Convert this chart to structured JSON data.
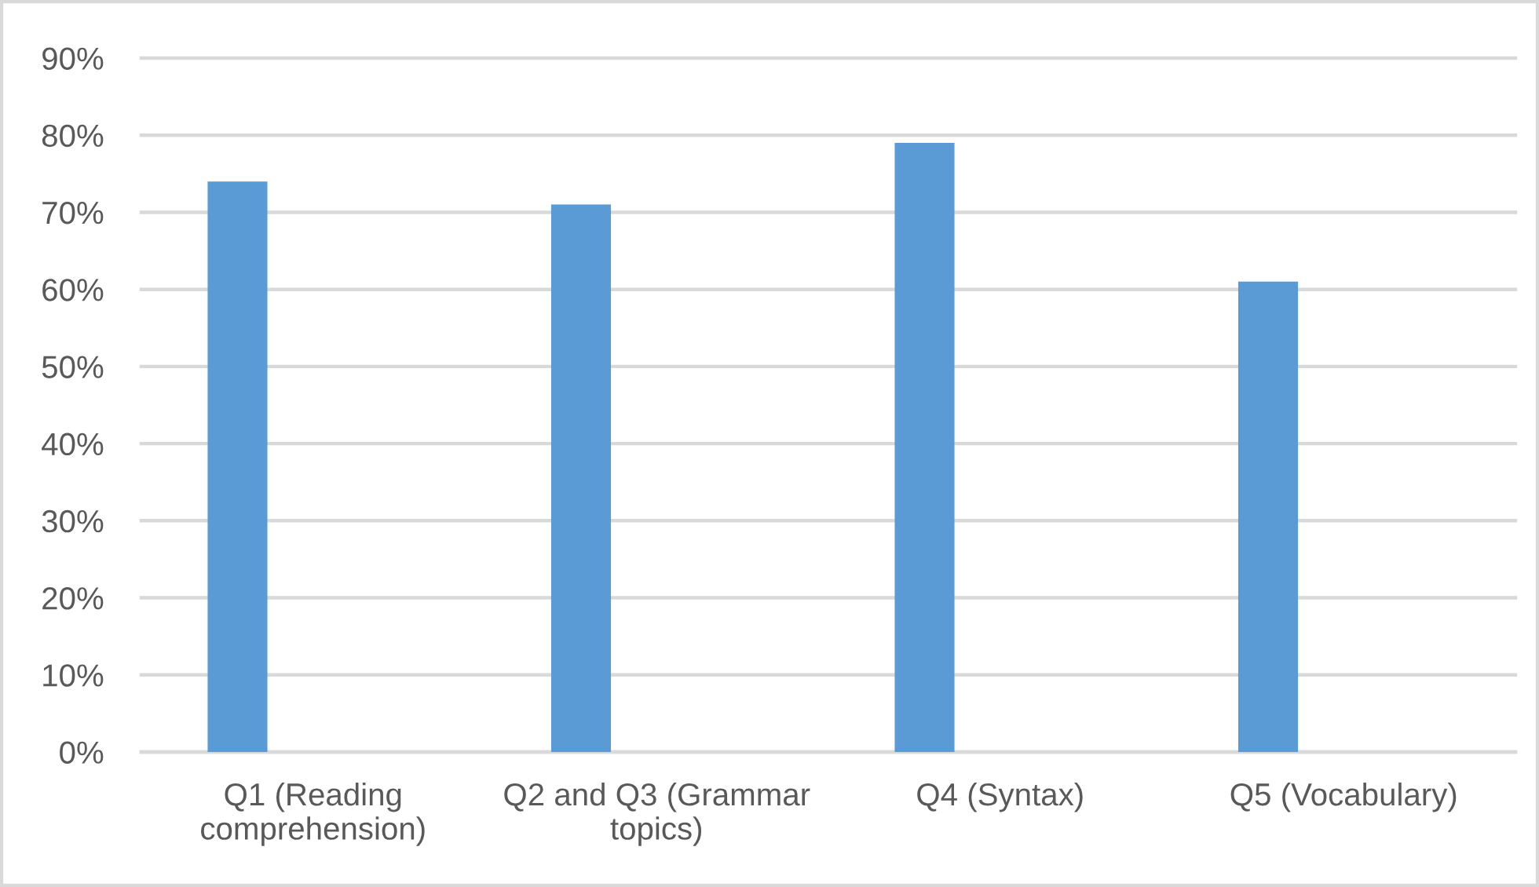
{
  "chart_data": {
    "type": "bar",
    "categories": [
      "Q1 (Reading\ncomprehension)",
      "Q2 and Q3 (Grammar\ntopics)",
      "Q4 (Syntax)",
      "Q5 (Vocabulary)"
    ],
    "values": [
      74,
      71,
      79,
      61
    ],
    "color": "#5b9bd5",
    "ylim": [
      0,
      90
    ],
    "yticks": [
      {
        "value": 0,
        "label": "0%"
      },
      {
        "value": 10,
        "label": "10%"
      },
      {
        "value": 20,
        "label": "20%"
      },
      {
        "value": 30,
        "label": "30%"
      },
      {
        "value": 40,
        "label": "40%"
      },
      {
        "value": 50,
        "label": "50%"
      },
      {
        "value": 60,
        "label": "60%"
      },
      {
        "value": 70,
        "label": "70%"
      },
      {
        "value": 80,
        "label": "80%"
      },
      {
        "value": 90,
        "label": "90%"
      }
    ],
    "grid": "y",
    "legend": false
  }
}
